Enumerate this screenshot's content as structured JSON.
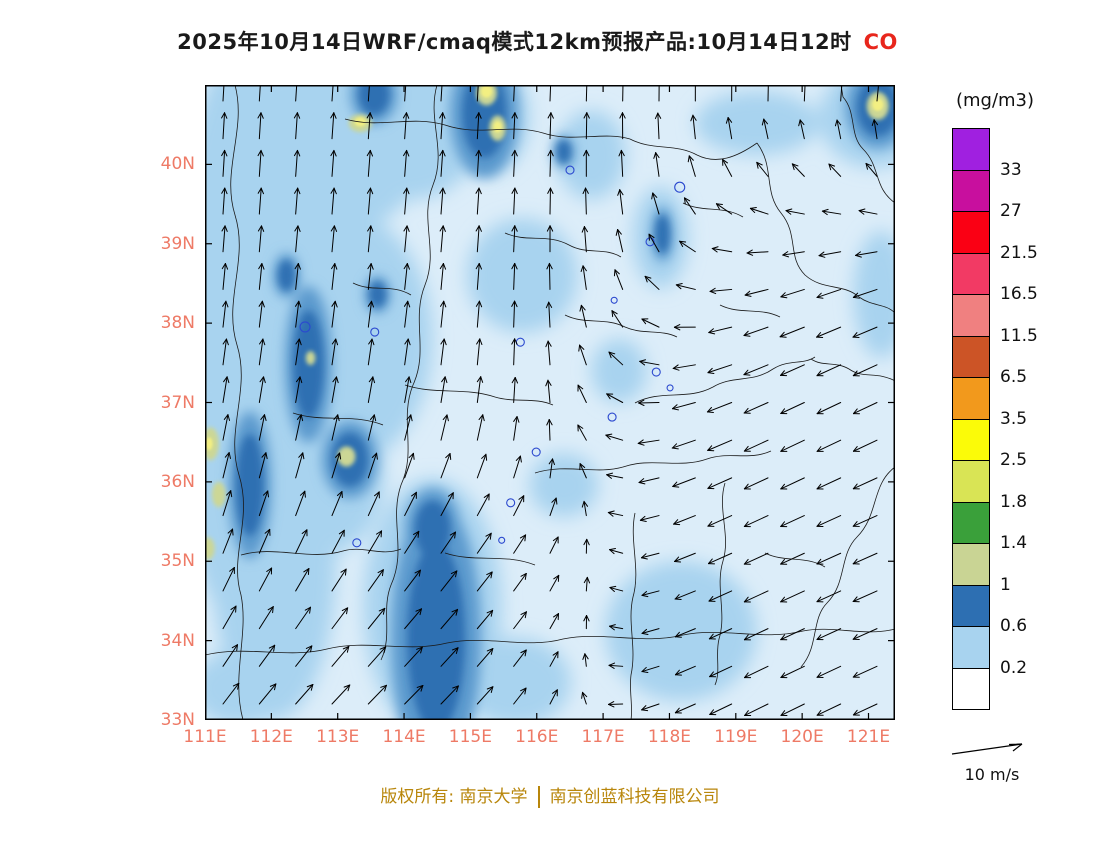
{
  "title": {
    "text": "2025年10月14日WRF/cmaq模式12km预报产品:10月14日12时",
    "species": "CO",
    "species_color": "#e8261c"
  },
  "footer": {
    "left": "版权所有: 南京大学",
    "right": "南京创蓝科技有限公司",
    "color": "#b8860b"
  },
  "axes": {
    "lat_ticks": [
      "40N",
      "39N",
      "38N",
      "37N",
      "36N",
      "35N",
      "34N",
      "33N"
    ],
    "lon_ticks": [
      "111E",
      "112E",
      "113E",
      "114E",
      "115E",
      "116E",
      "117E",
      "118E",
      "119E",
      "120E",
      "121E"
    ],
    "label_color": "#ee7a66"
  },
  "colorbar": {
    "title": "(mg/m3)",
    "unit_labels": [
      "33",
      "27",
      "21.5",
      "16.5",
      "11.5",
      "6.5",
      "3.5",
      "2.5",
      "1.8",
      "1.4",
      "1",
      "0.6",
      "0.2"
    ],
    "colors_top_to_bottom": [
      "#a020e0",
      "#c80f9e",
      "#fa0014",
      "#f23a64",
      "#f08080",
      "#cc5426",
      "#f2991c",
      "#fbfb08",
      "#d9e455",
      "#3aa03a",
      "#c9d494",
      "#2d6fb2",
      "#a8d3ef",
      "#ffffff"
    ]
  },
  "wind_legend": {
    "label": "10 m/s"
  },
  "chart_data": {
    "type": "contour-map",
    "variable": "CO",
    "units": "mg/m3",
    "model": "WRF/cmaq 12km",
    "valid_time": "10月14日12时",
    "lon_range": [
      111,
      121.4
    ],
    "lat_range": [
      33,
      41
    ],
    "contour_levels": [
      0.2,
      0.6,
      1,
      1.4,
      1.8,
      2.5,
      3.5,
      6.5,
      11.5,
      16.5,
      21.5,
      27,
      33
    ],
    "field_colors": {
      "base": "#dcedf9",
      "medium": "#a8d3ef",
      "dark_halo": "#5b9ace",
      "dark": "#2d6fb2",
      "khaki": "#ccd795",
      "yellow": "#f3ef82",
      "ring": "#2b49cf",
      "boundary": "#1a1a1a"
    },
    "features": {
      "medium_blobs": [
        [
          0.05,
          0.4,
          0.1,
          0.45
        ],
        [
          0.1,
          0.75,
          0.09,
          0.25
        ],
        [
          0.17,
          0.1,
          0.15,
          0.14
        ],
        [
          0.3,
          0.07,
          0.1,
          0.11
        ],
        [
          0.41,
          0.05,
          0.06,
          0.09
        ],
        [
          0.24,
          0.02,
          0.05,
          0.05
        ],
        [
          0.2,
          0.4,
          0.13,
          0.2
        ],
        [
          0.17,
          0.62,
          0.09,
          0.12
        ],
        [
          0.33,
          0.82,
          0.1,
          0.2
        ],
        [
          0.46,
          0.3,
          0.08,
          0.09
        ],
        [
          0.56,
          0.11,
          0.05,
          0.07
        ],
        [
          0.66,
          0.24,
          0.04,
          0.08
        ],
        [
          0.97,
          0.05,
          0.08,
          0.08
        ],
        [
          0.8,
          0.06,
          0.09,
          0.05
        ],
        [
          0.69,
          0.86,
          0.11,
          0.11
        ],
        [
          0.52,
          0.63,
          0.05,
          0.05
        ],
        [
          0.45,
          0.94,
          0.08,
          0.07
        ],
        [
          0.98,
          0.33,
          0.04,
          0.1
        ],
        [
          0.6,
          0.45,
          0.04,
          0.05
        ],
        [
          0.05,
          0.95,
          0.07,
          0.06
        ]
      ],
      "dark_blobs": [
        [
          0.245,
          0.015,
          0.022,
          0.032
        ],
        [
          0.405,
          0.045,
          0.032,
          0.07
        ],
        [
          0.15,
          0.44,
          0.022,
          0.085
        ],
        [
          0.065,
          0.63,
          0.02,
          0.08
        ],
        [
          0.21,
          0.59,
          0.026,
          0.042
        ],
        [
          0.335,
          0.87,
          0.042,
          0.15
        ],
        [
          0.33,
          0.7,
          0.026,
          0.045
        ],
        [
          0.975,
          0.035,
          0.03,
          0.045
        ],
        [
          0.52,
          0.105,
          0.01,
          0.018
        ],
        [
          0.663,
          0.235,
          0.01,
          0.03
        ],
        [
          0.25,
          0.33,
          0.012,
          0.02
        ],
        [
          0.118,
          0.3,
          0.012,
          0.024
        ]
      ],
      "khaki_spots": [
        [
          0.408,
          0.012,
          0.015,
          0.02
        ],
        [
          0.424,
          0.068,
          0.012,
          0.02
        ],
        [
          0.225,
          0.06,
          0.017,
          0.014
        ],
        [
          0.008,
          0.565,
          0.012,
          0.026
        ],
        [
          0.02,
          0.645,
          0.01,
          0.02
        ],
        [
          0.004,
          0.73,
          0.01,
          0.018
        ],
        [
          0.205,
          0.585,
          0.013,
          0.016
        ],
        [
          0.975,
          0.033,
          0.016,
          0.022
        ],
        [
          0.153,
          0.43,
          0.007,
          0.011
        ]
      ],
      "yellow_spots": [
        [
          0.408,
          0.01,
          0.008,
          0.01
        ],
        [
          0.225,
          0.058,
          0.008,
          0.007
        ],
        [
          0.975,
          0.031,
          0.008,
          0.01
        ],
        [
          0.424,
          0.066,
          0.006,
          0.009
        ],
        [
          0.006,
          0.565,
          0.005,
          0.01
        ]
      ],
      "rings": [
        [
          0.529,
          0.134,
          4
        ],
        [
          0.688,
          0.161,
          5
        ],
        [
          0.645,
          0.247,
          4
        ],
        [
          0.145,
          0.381,
          5
        ],
        [
          0.246,
          0.389,
          4
        ],
        [
          0.457,
          0.405,
          4
        ],
        [
          0.654,
          0.452,
          4
        ],
        [
          0.674,
          0.477,
          3
        ],
        [
          0.59,
          0.523,
          4
        ],
        [
          0.48,
          0.578,
          4
        ],
        [
          0.443,
          0.658,
          4
        ],
        [
          0.22,
          0.721,
          4
        ],
        [
          0.43,
          0.717,
          3
        ],
        [
          0.593,
          0.339,
          3
        ]
      ]
    },
    "boundaries": [
      "M30,0 C42,45 16,85 30,130 C44,175 18,215 32,260 C46,305 20,345 34,390 C48,435 24,470 36,510 C44,550 26,590 38,635",
      "M232,0 C222,35 242,65 228,100 C214,135 234,165 220,200 C206,235 224,265 208,300 C194,335 212,365 196,400 C184,435 202,465 186,500 C176,525 188,550 176,575",
      "M36,470 C70,460 104,476 138,466 C158,460 176,472 196,464",
      "M140,34 C175,44 205,30 240,40 C275,52 305,38 338,48 C368,58 398,46 425,54",
      "M425,54 C448,66 470,58 492,70 C512,80 532,72 552,58",
      "M552,58 C570,82 558,106 576,128 C594,150 582,172 600,190 C618,206 638,198 654,212",
      "M654,212 C668,222 680,218 690,228 M690,296 C672,286 658,294 644,284 C630,276 618,282 606,274",
      "M690,118 C668,102 676,82 658,64 C644,50 652,28 638,12 L636,0",
      "M430,318 C456,304 482,316 508,302 C528,290 548,298 568,284 C584,274 598,280 610,272",
      "M330,388 C362,378 390,390 418,382 C446,372 474,384 502,374 C524,366 544,376 566,366",
      "M520,398 C512,424 526,450 518,476 C510,502 522,528 514,554 C510,570 516,586 510,600",
      "M430,428 C424,456 436,484 428,512 C422,538 432,562 426,590 C424,606 428,620 426,635",
      "M0,570 C42,560 82,574 122,564 C162,554 202,568 242,558 C282,550 322,564 358,554",
      "M358,554 C398,546 438,560 478,550 C518,542 558,556 598,546 C628,540 660,552 690,544",
      "M690,382 C666,400 674,430 652,452 C634,470 642,498 622,518 C606,534 614,562 596,582",
      "M148,198 C168,208 186,198 206,210",
      "M300,148 C322,158 342,148 364,160 C382,170 400,162 416,172",
      "M478,118 C498,128 518,120 538,132",
      "M240,468 C270,478 300,468 330,480",
      "M88,328 C118,338 148,328 178,340",
      "M560,468 C580,478 600,470 620,482",
      "M360,230 C380,240 400,232 420,242 C438,250 456,244 472,252",
      "M200,300 C230,310 260,302 290,312 C310,318 330,312 348,320",
      "M515,220 C535,230 555,222 575,232"
    ],
    "wind": {
      "cols": 19,
      "rows": 17,
      "reference_speed_mps": 10,
      "anchors": [
        {
          "x": 0.06,
          "y": 0.15,
          "u": 0.05,
          "v": -1
        },
        {
          "x": 0.05,
          "y": 0.55,
          "u": 0.12,
          "v": -1
        },
        {
          "x": 0.3,
          "y": 0.1,
          "u": 0.08,
          "v": -1
        },
        {
          "x": 0.55,
          "y": 0.06,
          "u": 0.02,
          "v": -1
        },
        {
          "x": 0.3,
          "y": 0.4,
          "u": 0.15,
          "v": -0.95
        },
        {
          "x": 0.52,
          "y": 0.3,
          "u": 0.05,
          "v": -1
        },
        {
          "x": 0.95,
          "y": 0.04,
          "u": 0.3,
          "v": -0.9
        },
        {
          "x": 0.92,
          "y": 0.3,
          "u": -0.95,
          "v": 0.45
        },
        {
          "x": 0.78,
          "y": 0.45,
          "u": -0.9,
          "v": 0.5
        },
        {
          "x": 0.95,
          "y": 0.75,
          "u": -0.95,
          "v": 0.4
        },
        {
          "x": 0.7,
          "y": 0.9,
          "u": -0.8,
          "v": 0.45
        },
        {
          "x": 0.45,
          "y": 0.85,
          "u": 0.6,
          "v": -0.7
        },
        {
          "x": 0.2,
          "y": 0.9,
          "u": 0.75,
          "v": -0.5
        },
        {
          "x": 0.1,
          "y": 0.78,
          "u": 0.3,
          "v": -0.9
        }
      ]
    }
  }
}
